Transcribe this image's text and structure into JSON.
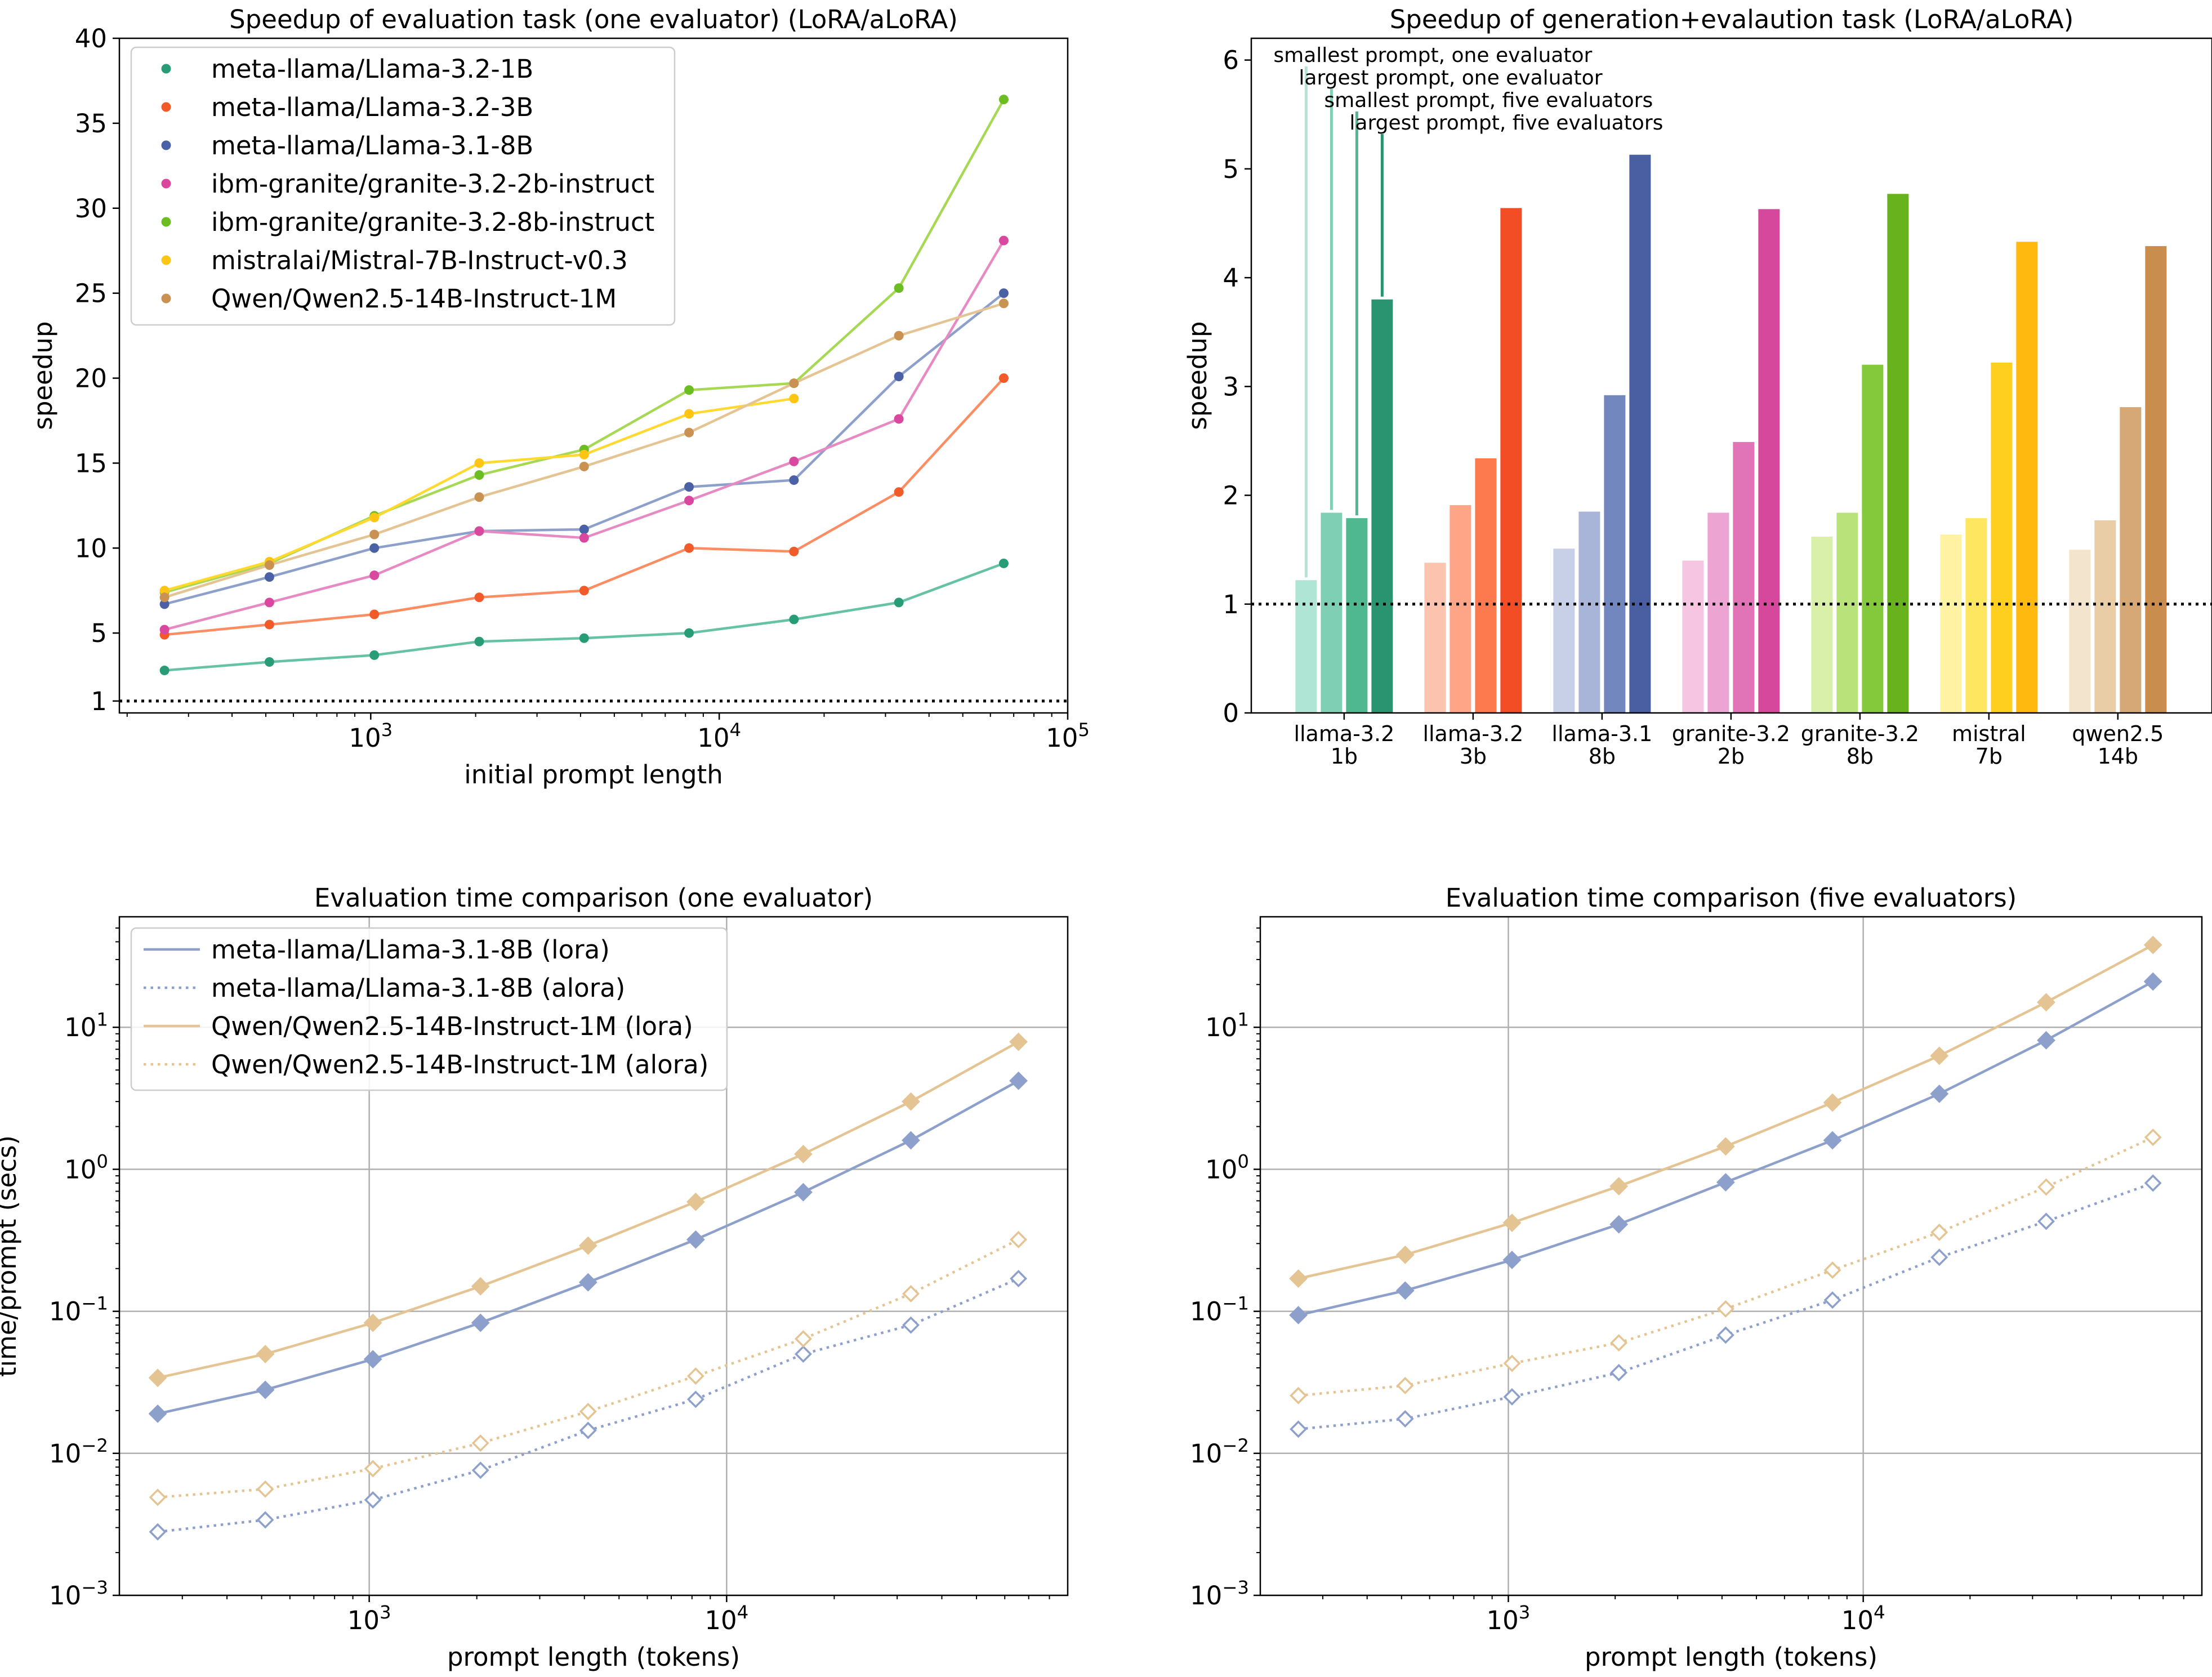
{
  "chart_data": [
    {
      "id": "speedup-eval",
      "type": "line",
      "title": "Speedup of evaluation task (one evaluator) (LoRA/aLoRA)",
      "xlabel": "initial prompt length",
      "ylabel": "speedup",
      "xscale": "log",
      "xlim": [
        190,
        100000
      ],
      "ylim": [
        0.3,
        40
      ],
      "xticks": [
        {
          "value": 1000,
          "base": "10",
          "exp": "3"
        },
        {
          "value": 10000,
          "base": "10",
          "exp": "4"
        },
        {
          "value": 100000,
          "base": "10",
          "exp": "5"
        }
      ],
      "yticks": [
        1,
        5,
        10,
        15,
        20,
        25,
        30,
        35,
        40
      ],
      "reference_line": {
        "y": 1,
        "style": "dotted"
      },
      "legend_position": "upper-left",
      "series": [
        {
          "name": "meta-llama/Llama-3.2-1B",
          "color": "#279c76",
          "line_color": "#66c2a5",
          "x": [
            256,
            512,
            1024,
            2048,
            4096,
            8192,
            16384,
            32768,
            65536
          ],
          "y": [
            2.8,
            3.3,
            3.7,
            4.5,
            4.7,
            5.0,
            5.8,
            6.8,
            9.1
          ]
        },
        {
          "name": "meta-llama/Llama-3.2-3B",
          "color": "#f25a2a",
          "line_color": "#fc8d62",
          "x": [
            256,
            512,
            1024,
            2048,
            4096,
            8192,
            16384,
            32768,
            65536
          ],
          "y": [
            4.9,
            5.5,
            6.1,
            7.1,
            7.5,
            10.0,
            9.8,
            13.3,
            20.0
          ]
        },
        {
          "name": "meta-llama/Llama-3.1-8B",
          "color": "#4a62a5",
          "line_color": "#8da0cb",
          "x": [
            256,
            512,
            1024,
            2048,
            4096,
            8192,
            16384,
            32768,
            65536
          ],
          "y": [
            6.7,
            8.3,
            10.0,
            11.0,
            11.1,
            13.6,
            14.0,
            20.1,
            25.0
          ]
        },
        {
          "name": "ibm-granite/granite-3.2-2b-instruct",
          "color": "#d9479e",
          "line_color": "#e78ac3",
          "x": [
            256,
            512,
            1024,
            2048,
            4096,
            8192,
            16384,
            32768,
            65536
          ],
          "y": [
            5.2,
            6.8,
            8.4,
            11.0,
            10.6,
            12.8,
            15.1,
            17.6,
            28.1
          ]
        },
        {
          "name": "ibm-granite/granite-3.2-8b-instruct",
          "color": "#6bbd22",
          "line_color": "#a6d854",
          "x": [
            256,
            512,
            1024,
            2048,
            4096,
            8192,
            16384,
            32768,
            65536
          ],
          "y": [
            7.4,
            9.1,
            11.9,
            14.3,
            15.8,
            19.3,
            19.7,
            25.3,
            36.4
          ]
        },
        {
          "name": "mistralai/Mistral-7B-Instruct-v0.3",
          "color": "#ffc515",
          "line_color": "#ffd92f",
          "x": [
            256,
            512,
            1024,
            2048,
            4096,
            8192,
            16384
          ],
          "y": [
            7.5,
            9.2,
            11.8,
            15.0,
            15.5,
            17.9,
            18.8
          ]
        },
        {
          "name": "Qwen/Qwen2.5-14B-Instruct-1M",
          "color": "#c99152",
          "line_color": "#e5c494",
          "x": [
            256,
            512,
            1024,
            2048,
            4096,
            8192,
            16384,
            32768,
            65536
          ],
          "y": [
            7.1,
            9.0,
            10.8,
            13.0,
            14.8,
            16.8,
            19.7,
            22.5,
            24.4
          ]
        }
      ]
    },
    {
      "id": "speedup-gen",
      "type": "bar",
      "title": "Speedup of generation+evalaution task (LoRA/aLoRA)",
      "ylabel": "speedup",
      "ylim": [
        0,
        6.2
      ],
      "yticks": [
        0,
        1,
        2,
        3,
        4,
        5,
        6
      ],
      "reference_line": {
        "y": 1,
        "style": "dotted"
      },
      "bar_annotations": [
        "smallest prompt, one evaluator",
        "largest prompt, one evaluator",
        "smallest prompt, five evaluators",
        "largest prompt, five evaluators"
      ],
      "groups": [
        {
          "label1": "llama-3.2",
          "label2": "1b",
          "values": [
            1.22,
            1.84,
            1.79,
            3.8
          ],
          "colors": [
            "#aee5d4",
            "#7fcfb4",
            "#4fb890",
            "#2a9470"
          ]
        },
        {
          "label1": "llama-3.2",
          "label2": "3b",
          "values": [
            1.38,
            1.91,
            2.34,
            4.64
          ],
          "colors": [
            "#fcc3ae",
            "#fda586",
            "#fc7a4e",
            "#f24d24"
          ]
        },
        {
          "label1": "llama-3.1",
          "label2": "8b",
          "values": [
            1.51,
            1.85,
            2.92,
            5.13
          ],
          "colors": [
            "#c7d0e6",
            "#a8b5d8",
            "#7287bd",
            "#4a5fa2"
          ]
        },
        {
          "label1": "granite-3.2",
          "label2": "2b",
          "values": [
            1.4,
            1.84,
            2.49,
            4.63
          ],
          "colors": [
            "#f5c5e2",
            "#eca5d2",
            "#e074b6",
            "#d5489c"
          ]
        },
        {
          "label1": "granite-3.2",
          "label2": "8b",
          "values": [
            1.62,
            1.84,
            3.2,
            4.77
          ],
          "colors": [
            "#d8f0a9",
            "#b9e27a",
            "#84c83b",
            "#67b21d"
          ]
        },
        {
          "label1": "mistral",
          "label2": "7b",
          "values": [
            1.64,
            1.79,
            3.22,
            4.33
          ],
          "colors": [
            "#fff2a3",
            "#ffe661",
            "#ffcf1f",
            "#ffb90f"
          ]
        },
        {
          "label1": "qwen2.5",
          "label2": "14b",
          "values": [
            1.5,
            1.77,
            2.81,
            4.29
          ],
          "colors": [
            "#f3e4cd",
            "#e8cda6",
            "#d6a875",
            "#c98e4e"
          ]
        }
      ]
    },
    {
      "id": "time-one",
      "type": "line",
      "title": "Evaluation time comparison (one evaluator)",
      "xlabel": "prompt length (tokens)",
      "ylabel": "time/prompt (secs)",
      "xscale": "log",
      "yscale": "log",
      "xlim": [
        200,
        90000
      ],
      "ylim": [
        0.001,
        60
      ],
      "xticks": [
        {
          "value": 1000,
          "base": "10",
          "exp": "3"
        },
        {
          "value": 10000,
          "base": "10",
          "exp": "4"
        }
      ],
      "yticks": [
        {
          "value": 0.001,
          "base": "10",
          "exp": "−3"
        },
        {
          "value": 0.01,
          "base": "10",
          "exp": "−2"
        },
        {
          "value": 0.1,
          "base": "10",
          "exp": "−1"
        },
        {
          "value": 1,
          "base": "10",
          "exp": "0"
        },
        {
          "value": 10,
          "base": "10",
          "exp": "1"
        }
      ],
      "grid": true,
      "legend_position": "upper-left",
      "series": [
        {
          "name": "meta-llama/Llama-3.1-8B (lora)",
          "color": "#8da0cb",
          "style": "solid",
          "marker": "filled-diamond",
          "x": [
            256,
            512,
            1024,
            2048,
            4096,
            8192,
            16384,
            32768,
            65536
          ],
          "y": [
            0.019,
            0.028,
            0.046,
            0.083,
            0.16,
            0.32,
            0.69,
            1.6,
            4.2
          ]
        },
        {
          "name": "meta-llama/Llama-3.1-8B (alora)",
          "color": "#8da0cb",
          "style": "dotted",
          "marker": "open-diamond",
          "x": [
            256,
            512,
            1024,
            2048,
            4096,
            8192,
            16384,
            32768,
            65536
          ],
          "y": [
            0.0028,
            0.0034,
            0.0047,
            0.0076,
            0.0145,
            0.024,
            0.05,
            0.08,
            0.17
          ]
        },
        {
          "name": "Qwen/Qwen2.5-14B-Instruct-1M (lora)",
          "color": "#e5c494",
          "style": "solid",
          "marker": "filled-diamond",
          "x": [
            256,
            512,
            1024,
            2048,
            4096,
            8192,
            16384,
            32768,
            65536
          ],
          "y": [
            0.034,
            0.05,
            0.083,
            0.15,
            0.29,
            0.59,
            1.28,
            3.0,
            7.9
          ]
        },
        {
          "name": "Qwen/Qwen2.5-14B-Instruct-1M (alora)",
          "color": "#e5c494",
          "style": "dotted",
          "marker": "open-diamond",
          "x": [
            256,
            512,
            1024,
            2048,
            4096,
            8192,
            16384,
            32768,
            65536
          ],
          "y": [
            0.0049,
            0.0056,
            0.0078,
            0.0118,
            0.0197,
            0.035,
            0.064,
            0.133,
            0.32
          ]
        }
      ]
    },
    {
      "id": "time-five",
      "type": "line",
      "title": "Evaluation time comparison (five evaluators)",
      "xlabel": "prompt length (tokens)",
      "ylabel": "",
      "xscale": "log",
      "yscale": "log",
      "xlim": [
        200,
        90000
      ],
      "ylim": [
        0.001,
        60
      ],
      "xticks": [
        {
          "value": 1000,
          "base": "10",
          "exp": "3"
        },
        {
          "value": 10000,
          "base": "10",
          "exp": "4"
        }
      ],
      "yticks": [
        {
          "value": 0.001,
          "base": "10",
          "exp": "−3"
        },
        {
          "value": 0.01,
          "base": "10",
          "exp": "−2"
        },
        {
          "value": 0.1,
          "base": "10",
          "exp": "−1"
        },
        {
          "value": 1,
          "base": "10",
          "exp": "0"
        },
        {
          "value": 10,
          "base": "10",
          "exp": "1"
        }
      ],
      "grid": true,
      "series": [
        {
          "name": "meta-llama/Llama-3.1-8B (lora)",
          "color": "#8da0cb",
          "style": "solid",
          "marker": "filled-diamond",
          "x": [
            256,
            512,
            1024,
            2048,
            4096,
            8192,
            16384,
            32768,
            65536
          ],
          "y": [
            0.094,
            0.14,
            0.23,
            0.41,
            0.81,
            1.6,
            3.4,
            8.1,
            21.0
          ]
        },
        {
          "name": "meta-llama/Llama-3.1-8B (alora)",
          "color": "#8da0cb",
          "style": "dotted",
          "marker": "open-diamond",
          "x": [
            256,
            512,
            1024,
            2048,
            4096,
            8192,
            16384,
            32768,
            65536
          ],
          "y": [
            0.0148,
            0.0175,
            0.025,
            0.037,
            0.068,
            0.12,
            0.24,
            0.43,
            0.8
          ]
        },
        {
          "name": "Qwen/Qwen2.5-14B-Instruct-1M (lora)",
          "color": "#e5c494",
          "style": "solid",
          "marker": "filled-diamond",
          "x": [
            256,
            512,
            1024,
            2048,
            4096,
            8192,
            16384,
            32768,
            65536
          ],
          "y": [
            0.17,
            0.25,
            0.42,
            0.76,
            1.45,
            2.95,
            6.3,
            15.0,
            38.0
          ]
        },
        {
          "name": "Qwen/Qwen2.5-14B-Instruct-1M (alora)",
          "color": "#e5c494",
          "style": "dotted",
          "marker": "open-diamond",
          "x": [
            256,
            512,
            1024,
            2048,
            4096,
            8192,
            16384,
            32768,
            65536
          ],
          "y": [
            0.0255,
            0.03,
            0.043,
            0.06,
            0.104,
            0.195,
            0.36,
            0.75,
            1.68
          ]
        }
      ]
    }
  ]
}
